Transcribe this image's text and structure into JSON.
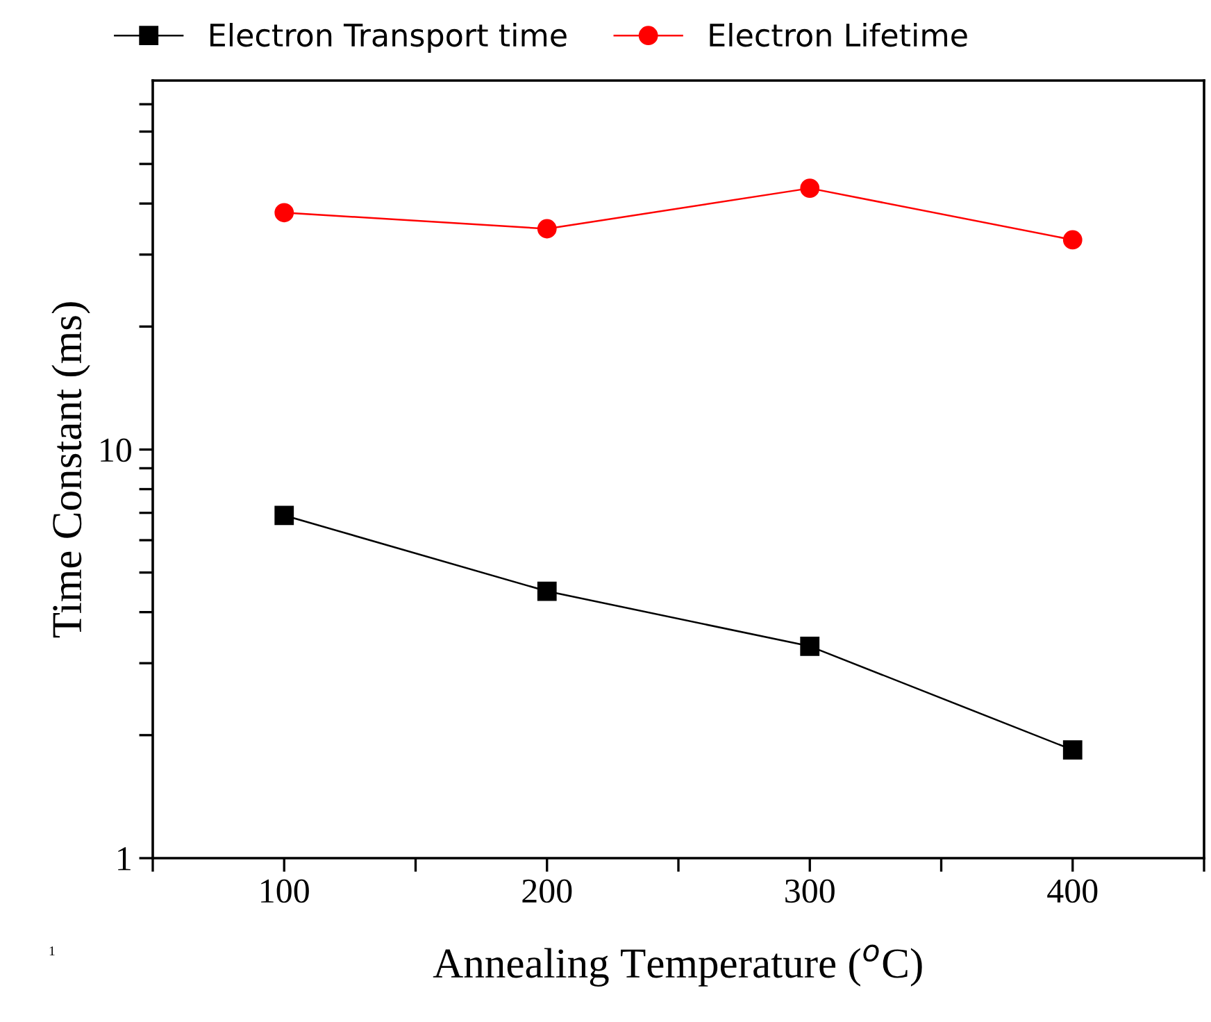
{
  "chart_data": {
    "type": "line",
    "xlabel": "Annealing Temperature ($^{o}$C)",
    "ylabel": "Time Constant (ms)",
    "x": [
      100,
      200,
      300,
      400
    ],
    "series": [
      {
        "name": "Electron Transport time",
        "color": "#000000",
        "marker": "square",
        "values": [
          6.9,
          4.5,
          3.3,
          1.84
        ]
      },
      {
        "name": "Electron Lifetime",
        "color": "#ff0000",
        "marker": "circle",
        "values": [
          38,
          34.7,
          43.6,
          32.6
        ]
      }
    ],
    "log": "y",
    "xlim": [
      50,
      450
    ],
    "ylim": [
      1,
      80
    ],
    "xticks": [
      {
        "value": 50,
        "label": null
      },
      100,
      {
        "value": 150,
        "label": null
      },
      200,
      {
        "value": 250,
        "label": null
      },
      300,
      {
        "value": 350,
        "label": null
      },
      400,
      {
        "value": 450,
        "label": null
      }
    ],
    "yticks": [
      1,
      {
        "value": 2,
        "label": null
      },
      {
        "value": 3,
        "label": null
      },
      {
        "value": 4,
        "label": null
      },
      {
        "value": 5,
        "label": null
      },
      {
        "value": 6,
        "label": null
      },
      {
        "value": 7,
        "label": null
      },
      {
        "value": 8,
        "label": null
      },
      {
        "value": 9,
        "label": null
      },
      10,
      {
        "value": 20,
        "label": null
      },
      {
        "value": 30,
        "label": null
      },
      {
        "value": 40,
        "label": null
      },
      {
        "value": 50,
        "label": null
      },
      {
        "value": 60,
        "label": null
      },
      {
        "value": 70,
        "label": null
      }
    ],
    "grid": false,
    "legend": "top",
    "line_style": "solid",
    "annotations": [
      "1"
    ]
  }
}
